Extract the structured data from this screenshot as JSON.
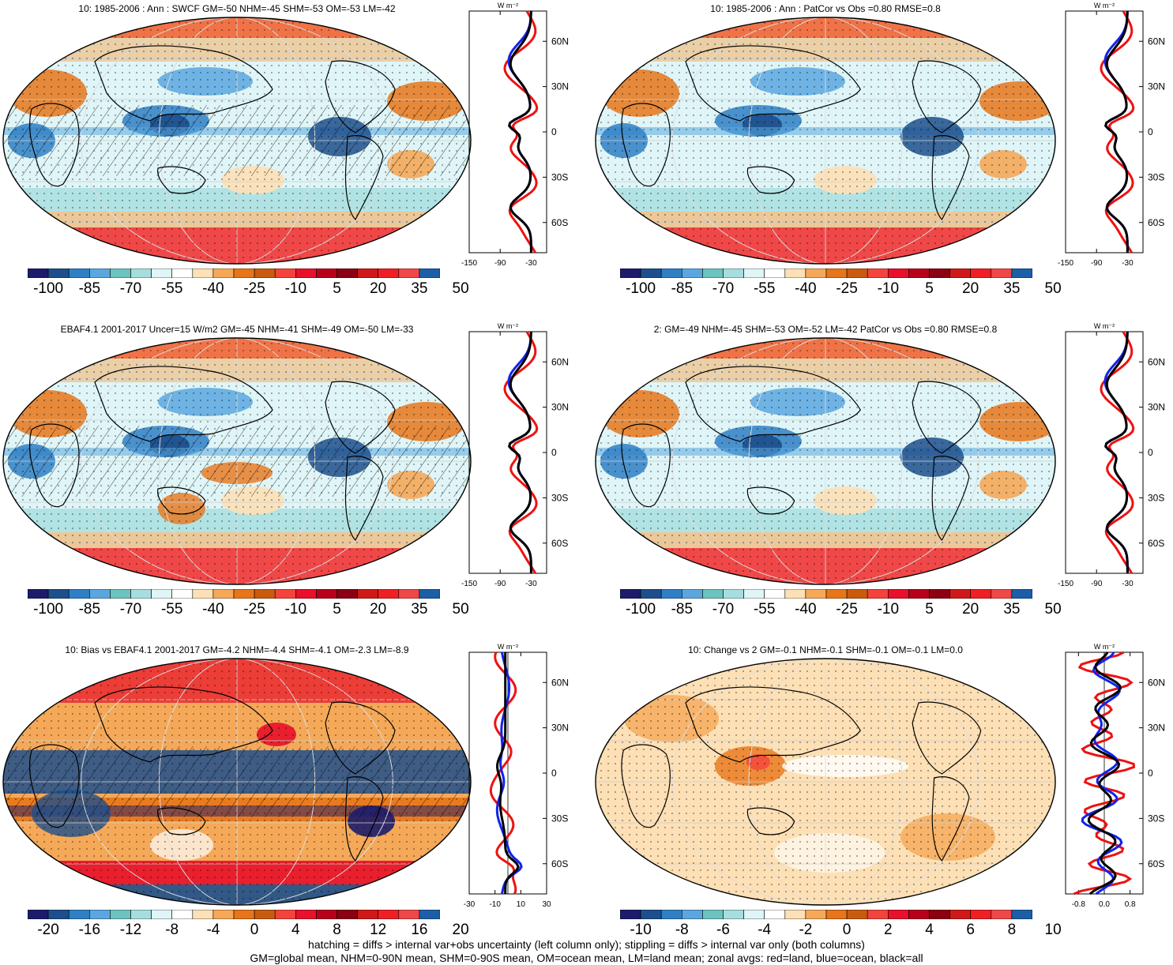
{
  "panels": [
    {
      "id": "p1",
      "title": "10: 1985-2006 : Ann : SWCF GM=-50 NHM=-45 SHM=-53 OM=-53 LM=-42",
      "colorbar_labels": [
        "-100",
        "-85",
        "-70",
        "-55",
        "-40",
        "-25",
        "-10",
        "5",
        "20",
        "35",
        "50"
      ],
      "zonal_xticks": [
        "-150",
        "-90",
        "-30"
      ],
      "zonal_yticks": [
        "60N",
        "30N",
        "0",
        "30S",
        "60S"
      ],
      "zonal_unit": "W m⁻²",
      "map_style": "clim",
      "hatch": true
    },
    {
      "id": "p2",
      "title": "10: 1985-2006 : Ann : PatCor vs Obs =0.80 RMSE=0.8",
      "colorbar_labels": [
        "-100",
        "-85",
        "-70",
        "-55",
        "-40",
        "-25",
        "-10",
        "5",
        "20",
        "35",
        "50"
      ],
      "zonal_xticks": [
        "-150",
        "-90",
        "-30"
      ],
      "zonal_yticks": [
        "60N",
        "30N",
        "0",
        "30S",
        "60S"
      ],
      "zonal_unit": "W m⁻²",
      "map_style": "clim",
      "hatch": false
    },
    {
      "id": "p3",
      "title": "EBAF4.1 2001-2017 Uncer=15 W/m2 GM=-45 NHM=-41 SHM=-49 OM=-50 LM=-33",
      "colorbar_labels": [
        "-100",
        "-85",
        "-70",
        "-55",
        "-40",
        "-25",
        "-10",
        "5",
        "20",
        "35",
        "50"
      ],
      "zonal_xticks": [
        "-150",
        "-90",
        "-30"
      ],
      "zonal_yticks": [
        "60N",
        "30N",
        "0",
        "30S",
        "60S"
      ],
      "zonal_unit": "W m⁻²",
      "map_style": "obs",
      "hatch": true
    },
    {
      "id": "p4",
      "title": "2: GM=-49 NHM=-45 SHM=-53 OM=-52 LM=-42 PatCor vs Obs =0.80 RMSE=0.8",
      "colorbar_labels": [
        "-100",
        "-85",
        "-70",
        "-55",
        "-40",
        "-25",
        "-10",
        "5",
        "20",
        "35",
        "50"
      ],
      "zonal_xticks": [
        "-150",
        "-90",
        "-30"
      ],
      "zonal_yticks": [
        "60N",
        "30N",
        "0",
        "30S",
        "60S"
      ],
      "zonal_unit": "W m⁻²",
      "map_style": "clim",
      "hatch": false
    },
    {
      "id": "p5",
      "title": "10: Bias vs EBAF4.1 2001-2017 GM=-4.2 NHM=-4.4 SHM=-4.1 OM=-2.3 LM=-8.9",
      "colorbar_labels": [
        "-20",
        "-16",
        "-12",
        "-8",
        "-4",
        "0",
        "4",
        "8",
        "12",
        "16",
        "20"
      ],
      "zonal_xticks": [
        "-30",
        "-10",
        "10",
        "30"
      ],
      "zonal_yticks": [
        "60N",
        "30N",
        "0",
        "30S",
        "60S"
      ],
      "zonal_unit": "W m⁻²",
      "map_style": "bias",
      "hatch": true
    },
    {
      "id": "p6",
      "title": "10: Change vs 2 GM=-0.1 NHM=-0.1 SHM=-0.1 OM=-0.1 LM=0.0",
      "colorbar_labels": [
        "-10",
        "-8",
        "-6",
        "-4",
        "-2",
        "0",
        "2",
        "4",
        "6",
        "8",
        "10"
      ],
      "zonal_xticks": [
        "-0.8",
        "0.0",
        "0.8"
      ],
      "zonal_yticks": [
        "60N",
        "30N",
        "0",
        "30S",
        "60S"
      ],
      "zonal_unit": "W m⁻²",
      "map_style": "change",
      "hatch": false
    }
  ],
  "colors": {
    "scale": [
      "#1c1c6b",
      "#1d4f8c",
      "#2f7fc4",
      "#5aa7df",
      "#6cc3c0",
      "#a6dede",
      "#dff5f7",
      "#ffffff",
      "#fde0b5",
      "#f5a958",
      "#e8751a",
      "#c95b0f",
      "#f4433c",
      "#e8102a",
      "#b8001b",
      "#8b0012",
      "#d11818",
      "#ef1f24",
      "#f04848",
      "#1c5fa8"
    ],
    "land_zonal": "#ee1111",
    "ocean_zonal": "#1122ee",
    "all_zonal": "#000000"
  },
  "footer": {
    "line1": "hatching = diffs > internal var+obs uncertainty (left column only); stippling = diffs > internal var only (both columns)",
    "line2": "GM=global mean, NHM=0-90N mean, SHM=0-90S mean, OM=ocean mean, LM=land mean; zonal avgs: red=land, blue=ocean, black=all"
  }
}
